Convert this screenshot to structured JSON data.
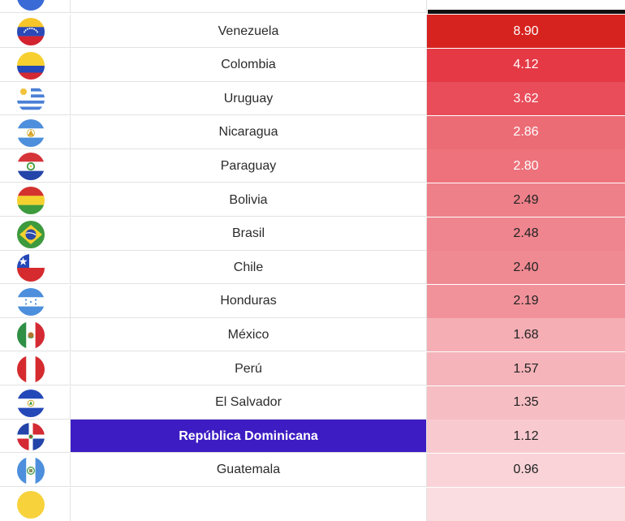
{
  "rows": [
    {
      "country": "Venezuela",
      "value": "8.90",
      "bg": "#d7231f",
      "fg": "#ffffff",
      "flag": "venezuela-flag-icon"
    },
    {
      "country": "Colombia",
      "value": "4.12",
      "bg": "#e53a46",
      "fg": "#ffffff",
      "flag": "colombia-flag-icon"
    },
    {
      "country": "Uruguay",
      "value": "3.62",
      "bg": "#e94d5a",
      "fg": "#ffffff",
      "flag": "uruguay-flag-icon"
    },
    {
      "country": "Nicaragua",
      "value": "2.86",
      "bg": "#ec6c76",
      "fg": "#ffffff",
      "flag": "nicaragua-flag-icon"
    },
    {
      "country": "Paraguay",
      "value": "2.80",
      "bg": "#ed727b",
      "fg": "#ffffff",
      "flag": "paraguay-flag-icon"
    },
    {
      "country": "Bolivia",
      "value": "2.49",
      "bg": "#ee8089",
      "fg": "#222222",
      "flag": "bolivia-flag-icon"
    },
    {
      "country": "Brasil",
      "value": "2.48",
      "bg": "#ef858e",
      "fg": "#222222",
      "flag": "brasil-flag-icon"
    },
    {
      "country": "Chile",
      "value": "2.40",
      "bg": "#f08a92",
      "fg": "#222222",
      "flag": "chile-flag-icon"
    },
    {
      "country": "Honduras",
      "value": "2.19",
      "bg": "#f1929a",
      "fg": "#222222",
      "flag": "honduras-flag-icon"
    },
    {
      "country": "México",
      "value": "1.68",
      "bg": "#f4aeb4",
      "fg": "#222222",
      "flag": "mexico-flag-icon"
    },
    {
      "country": "Perú",
      "value": "1.57",
      "bg": "#f5b4ba",
      "fg": "#222222",
      "flag": "peru-flag-icon"
    },
    {
      "country": "El Salvador",
      "value": "1.35",
      "bg": "#f6bec3",
      "fg": "#222222",
      "flag": "el-salvador-flag-icon"
    },
    {
      "country": "República Dominicana",
      "value": "1.12",
      "bg": "#f8cacf",
      "fg": "#222222",
      "flag": "dominican-republic-flag-icon",
      "highlight": true
    },
    {
      "country": "Guatemala",
      "value": "0.96",
      "bg": "#f9d3d7",
      "fg": "#222222",
      "flag": "guatemala-flag-icon"
    }
  ],
  "colors": {
    "highlight": "#3d1cc3",
    "top_bar": "#111111"
  }
}
